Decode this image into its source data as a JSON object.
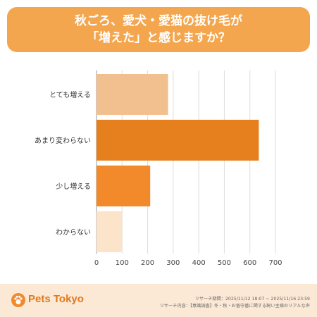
{
  "title": {
    "line1": "秋ごろ、愛犬・愛猫の抜け毛が",
    "line2": "「増えた」と感じますか？"
  },
  "chart_data": {
    "type": "bar",
    "orientation": "horizontal",
    "categories": [
      "とても増える",
      "あまり変わらない",
      "少し増える",
      "わからない"
    ],
    "values": [
      280,
      635,
      210,
      100
    ],
    "colors": [
      "#f2c08f",
      "#e6801f",
      "#f28a2c",
      "#fbe4c9"
    ],
    "xticks": [
      0,
      100,
      200,
      300,
      400,
      500,
      600,
      700
    ],
    "xlim": [
      0,
      700
    ],
    "xlabel": "",
    "ylabel": "",
    "grid": true,
    "legend": "none"
  },
  "footer": {
    "brand": "Pets Tokyo",
    "line1": "リサーチ期間：2025/11/12 18:07 ~ 2025/11/16 23:59",
    "line2": "リサーチ内容：【意識調査】冬・秋・お留守番に関する飼い主様のリアルな声"
  },
  "colors": {
    "banner": "#f4a64f",
    "footer_bg": "#fbe8d5",
    "brand": "#e07a1a"
  }
}
